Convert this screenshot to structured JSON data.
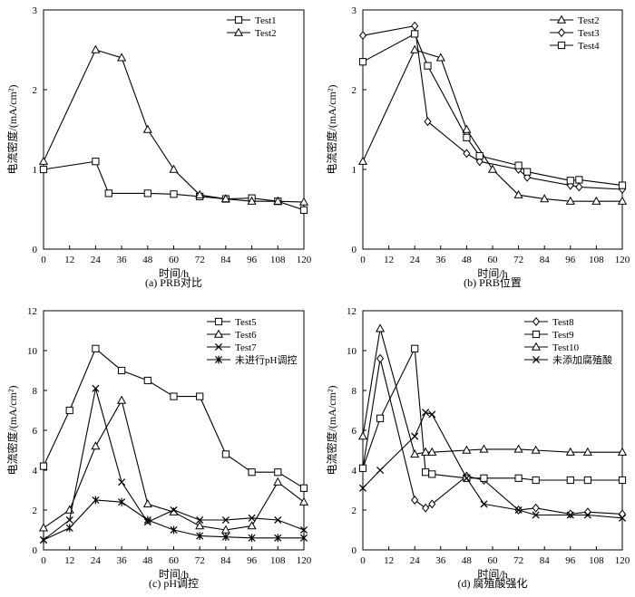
{
  "figure": {
    "background": "#ffffff",
    "line_color": "#000000"
  },
  "chart_data": [
    {
      "panel": "a",
      "type": "line",
      "caption": "(a)  PRB对比",
      "xlabel": "时间/h",
      "ylabel": "电流密度/(mA/cm²)",
      "xlim": [
        0,
        120
      ],
      "ylim": [
        0,
        3
      ],
      "xticks": [
        0,
        12,
        24,
        36,
        48,
        60,
        72,
        84,
        96,
        108,
        120
      ],
      "yticks": [
        0,
        1,
        2,
        3
      ],
      "grid": false,
      "legend_position": "top-right",
      "series": [
        {
          "name": "Test1",
          "marker": "square",
          "x": [
            0,
            24,
            30,
            48,
            60,
            72,
            84,
            96,
            108,
            120
          ],
          "y": [
            1.0,
            1.1,
            0.7,
            0.7,
            0.69,
            0.66,
            0.63,
            0.64,
            0.6,
            0.49
          ]
        },
        {
          "name": "Test2",
          "marker": "triangle",
          "x": [
            0,
            24,
            36,
            48,
            60,
            72,
            84,
            96,
            108,
            120
          ],
          "y": [
            1.1,
            2.5,
            2.4,
            1.5,
            1.0,
            0.68,
            0.63,
            0.6,
            0.6,
            0.59
          ]
        }
      ]
    },
    {
      "panel": "b",
      "type": "line",
      "caption": "(b)  PRB位置",
      "xlabel": "时间/h",
      "ylabel": "电流密度/(mA/cm²)",
      "xlim": [
        0,
        120
      ],
      "ylim": [
        0,
        3
      ],
      "xticks": [
        0,
        12,
        24,
        36,
        48,
        60,
        72,
        84,
        96,
        108,
        120
      ],
      "yticks": [
        0,
        1,
        2,
        3
      ],
      "grid": false,
      "legend_position": "top-right",
      "series": [
        {
          "name": "Test2",
          "marker": "triangle",
          "x": [
            0,
            24,
            36,
            48,
            60,
            72,
            84,
            96,
            108,
            120
          ],
          "y": [
            1.1,
            2.5,
            2.4,
            1.5,
            1.0,
            0.68,
            0.63,
            0.6,
            0.6,
            0.6
          ]
        },
        {
          "name": "Test3",
          "marker": "diamond",
          "x": [
            0,
            24,
            30,
            48,
            54,
            72,
            76,
            96,
            100,
            120
          ],
          "y": [
            2.68,
            2.8,
            1.6,
            1.2,
            1.1,
            1.0,
            0.9,
            0.8,
            0.78,
            0.75
          ]
        },
        {
          "name": "Test4",
          "marker": "square",
          "x": [
            0,
            24,
            30,
            48,
            54,
            72,
            76,
            96,
            100,
            120
          ],
          "y": [
            2.35,
            2.7,
            2.3,
            1.4,
            1.17,
            1.05,
            0.97,
            0.86,
            0.87,
            0.8
          ]
        }
      ]
    },
    {
      "panel": "c",
      "type": "line",
      "caption": "(c)  pH调控",
      "xlabel": "时间/h",
      "ylabel": "电流密度/(mA/cm²)",
      "xlim": [
        0,
        120
      ],
      "ylim": [
        0,
        12
      ],
      "xticks": [
        0,
        12,
        24,
        36,
        48,
        60,
        72,
        84,
        96,
        108,
        120
      ],
      "yticks": [
        0,
        2,
        4,
        6,
        8,
        10,
        12
      ],
      "grid": false,
      "legend_position": "top-right",
      "series": [
        {
          "name": "Test5",
          "marker": "square",
          "x": [
            0,
            12,
            24,
            36,
            48,
            60,
            72,
            84,
            96,
            108,
            120
          ],
          "y": [
            4.2,
            7.0,
            10.1,
            9.0,
            8.5,
            7.7,
            7.7,
            4.8,
            3.9,
            3.9,
            3.1
          ]
        },
        {
          "name": "Test6",
          "marker": "triangle",
          "x": [
            0,
            12,
            24,
            36,
            48,
            60,
            72,
            84,
            96,
            108,
            120
          ],
          "y": [
            1.1,
            2.0,
            5.2,
            7.5,
            2.3,
            1.9,
            1.2,
            1.0,
            1.2,
            3.4,
            2.4
          ]
        },
        {
          "name": "Test7",
          "marker": "x",
          "x": [
            0,
            12,
            24,
            36,
            48,
            60,
            72,
            84,
            96,
            108,
            120
          ],
          "y": [
            0.5,
            1.5,
            8.1,
            3.4,
            1.4,
            2.0,
            1.5,
            1.5,
            1.6,
            1.5,
            1.0
          ]
        },
        {
          "name": "未进行pH调控",
          "marker": "asterisk",
          "x": [
            0,
            12,
            24,
            36,
            48,
            60,
            72,
            84,
            96,
            108,
            120
          ],
          "y": [
            0.5,
            1.1,
            2.5,
            2.4,
            1.5,
            1.0,
            0.7,
            0.65,
            0.6,
            0.6,
            0.6
          ]
        }
      ]
    },
    {
      "panel": "d",
      "type": "line",
      "caption": "(d)  腐殖酸强化",
      "xlabel": "时间/h",
      "ylabel": "电流密度/(mA/cm²)",
      "xlim": [
        0,
        120
      ],
      "ylim": [
        0,
        12
      ],
      "xticks": [
        0,
        12,
        24,
        36,
        48,
        60,
        72,
        84,
        96,
        108,
        120
      ],
      "yticks": [
        0,
        2,
        4,
        6,
        8,
        10,
        12
      ],
      "grid": false,
      "legend_position": "top-right",
      "series": [
        {
          "name": "Test8",
          "marker": "diamond",
          "x": [
            0,
            8,
            24,
            29,
            32,
            48,
            56,
            72,
            80,
            96,
            104,
            120
          ],
          "y": [
            4.1,
            9.6,
            2.5,
            2.1,
            2.3,
            3.7,
            3.5,
            2.0,
            2.1,
            1.8,
            1.9,
            1.8
          ]
        },
        {
          "name": "Test9",
          "marker": "square",
          "x": [
            0,
            8,
            24,
            29,
            32,
            48,
            56,
            72,
            80,
            96,
            104,
            120
          ],
          "y": [
            4.1,
            6.6,
            10.1,
            3.9,
            3.8,
            3.6,
            3.6,
            3.6,
            3.5,
            3.5,
            3.5,
            3.5
          ]
        },
        {
          "name": "Test10",
          "marker": "triangle",
          "x": [
            0,
            8,
            24,
            29,
            32,
            48,
            56,
            72,
            80,
            96,
            104,
            120
          ],
          "y": [
            5.7,
            11.1,
            4.8,
            4.9,
            4.9,
            5.0,
            5.05,
            5.05,
            5.0,
            4.9,
            4.9,
            4.9
          ]
        },
        {
          "name": "未添加腐殖酸",
          "marker": "x",
          "x": [
            0,
            8,
            24,
            29,
            32,
            48,
            56,
            72,
            80,
            96,
            104,
            120
          ],
          "y": [
            3.1,
            4.0,
            5.7,
            6.9,
            6.8,
            3.6,
            2.3,
            2.0,
            1.75,
            1.75,
            1.75,
            1.6
          ]
        }
      ]
    }
  ]
}
